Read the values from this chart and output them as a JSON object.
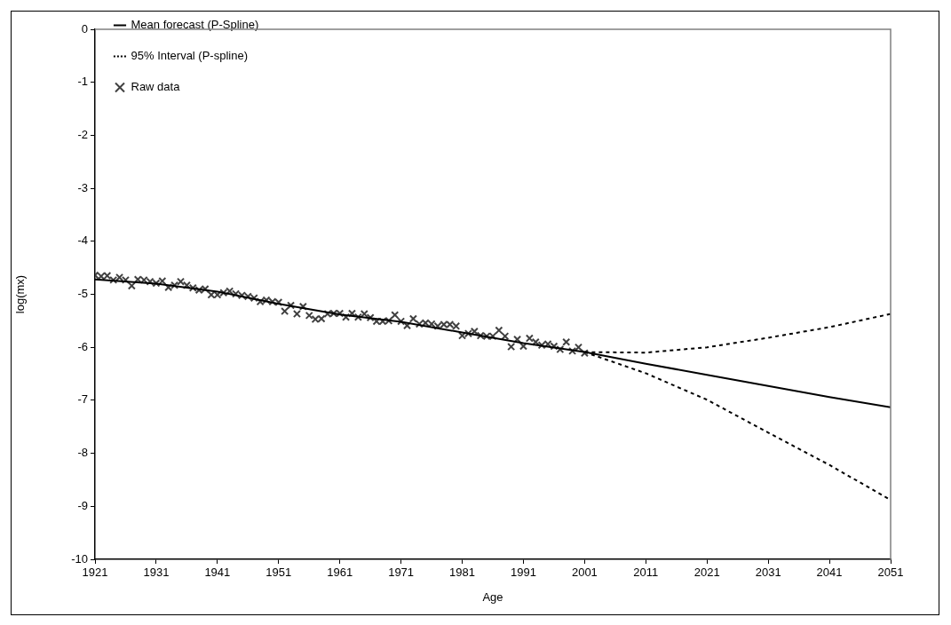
{
  "chart_data": {
    "type": "line",
    "xlabel": "Age",
    "ylabel": "log(mx)",
    "xlim": [
      1921,
      2051
    ],
    "xticks": [
      1921,
      1931,
      1941,
      1951,
      1961,
      1971,
      1981,
      1991,
      2001,
      2011,
      2021,
      2031,
      2041,
      2051
    ],
    "ylim": [
      -10,
      0
    ],
    "yticks": [
      -10,
      -9,
      -8,
      -7,
      -6,
      -5,
      -4,
      -3,
      -2,
      -1,
      0
    ],
    "legend": "top left",
    "series": [
      {
        "name": "Mean forecast (P-Spline)",
        "line_style": "solid",
        "marker": "none",
        "color": "#000000",
        "x": [
          1921,
          1931,
          1941,
          1951,
          1961,
          1971,
          1981,
          1991,
          2001,
          2011,
          2021,
          2031,
          2041,
          2051
        ],
        "values": [
          -4.72,
          -4.8,
          -4.95,
          -5.18,
          -5.38,
          -5.52,
          -5.72,
          -5.92,
          -6.09,
          -6.31,
          -6.52,
          -6.73,
          -6.94,
          -7.13
        ]
      },
      {
        "name": "95% Interval (P-spline)",
        "line_style": "dashed",
        "marker": "none",
        "color": "#000000",
        "x": [
          2001,
          2011,
          2021,
          2031,
          2041,
          2051
        ],
        "values": [
          -6.09,
          -6.1,
          -6.0,
          -5.82,
          -5.62,
          -5.37
        ]
      },
      {
        "line_style": "dashed",
        "marker": "none",
        "color": "#000000",
        "x": [
          2001,
          2011,
          2021,
          2031,
          2041,
          2051
        ],
        "values": [
          -6.09,
          -6.49,
          -6.99,
          -7.61,
          -8.22,
          -8.88
        ]
      },
      {
        "name": "Raw data",
        "type": "scatter",
        "marker": "cross",
        "color": "#404040",
        "x": [
          1921,
          1922,
          1923,
          1924,
          1925,
          1926,
          1927,
          1928,
          1929,
          1930,
          1931,
          1932,
          1933,
          1934,
          1935,
          1936,
          1937,
          1938,
          1939,
          1940,
          1941,
          1942,
          1943,
          1944,
          1945,
          1946,
          1947,
          1948,
          1949,
          1950,
          1951,
          1952,
          1953,
          1954,
          1955,
          1956,
          1957,
          1958,
          1959,
          1960,
          1961,
          1962,
          1963,
          1964,
          1965,
          1966,
          1967,
          1968,
          1969,
          1970,
          1971,
          1972,
          1973,
          1974,
          1975,
          1976,
          1977,
          1978,
          1979,
          1980,
          1981,
          1982,
          1983,
          1984,
          1985,
          1986,
          1987,
          1988,
          1989,
          1990,
          1991,
          1992,
          1993,
          1994,
          1995,
          1996,
          1997,
          1998,
          1999,
          2000,
          2001
        ],
        "values": [
          -4.64,
          -4.66,
          -4.65,
          -4.73,
          -4.68,
          -4.73,
          -4.84,
          -4.72,
          -4.73,
          -4.76,
          -4.79,
          -4.75,
          -4.87,
          -4.83,
          -4.76,
          -4.83,
          -4.88,
          -4.92,
          -4.9,
          -5.01,
          -5.01,
          -4.97,
          -4.94,
          -4.99,
          -5.02,
          -5.04,
          -5.07,
          -5.14,
          -5.11,
          -5.14,
          -5.15,
          -5.32,
          -5.21,
          -5.37,
          -5.23,
          -5.4,
          -5.47,
          -5.46,
          -5.37,
          -5.36,
          -5.36,
          -5.43,
          -5.36,
          -5.43,
          -5.37,
          -5.44,
          -5.51,
          -5.51,
          -5.5,
          -5.39,
          -5.51,
          -5.59,
          -5.46,
          -5.56,
          -5.54,
          -5.56,
          -5.6,
          -5.57,
          -5.57,
          -5.6,
          -5.78,
          -5.74,
          -5.7,
          -5.78,
          -5.79,
          -5.79,
          -5.68,
          -5.79,
          -5.99,
          -5.85,
          -5.98,
          -5.83,
          -5.9,
          -5.96,
          -5.94,
          -5.98,
          -6.04,
          -5.9,
          -6.07,
          -6.0,
          -6.11
        ]
      }
    ]
  }
}
